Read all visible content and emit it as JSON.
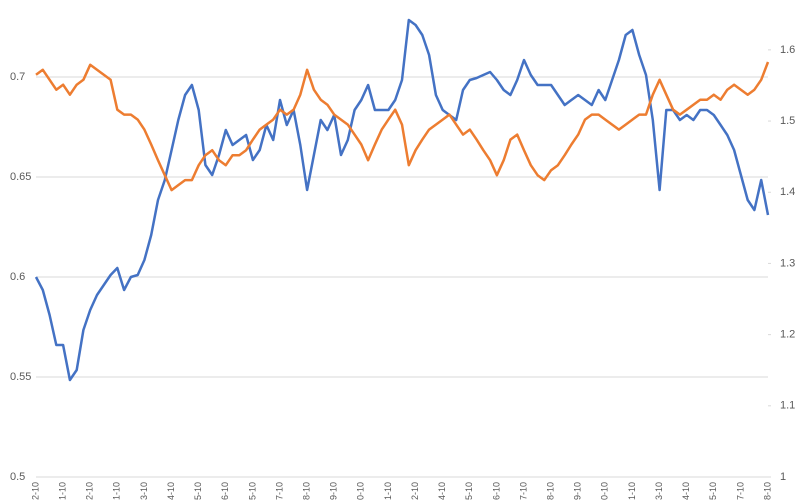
{
  "chart_data": {
    "type": "line",
    "categories": [
      "2-10",
      null,
      null,
      null,
      "1-10",
      null,
      null,
      null,
      "2-10",
      null,
      null,
      null,
      "1-10",
      null,
      null,
      null,
      "3-10",
      null,
      null,
      null,
      "4-10",
      null,
      null,
      null,
      "5-10",
      null,
      null,
      null,
      "6-10",
      null,
      null,
      null,
      "5-10",
      null,
      null,
      null,
      "7-10",
      null,
      null,
      null,
      "8-10",
      null,
      null,
      null,
      "9-10",
      null,
      null,
      null,
      "0-10",
      null,
      null,
      null,
      "1-10",
      null,
      null,
      null,
      "2-10",
      null,
      null,
      null,
      "4-10",
      null,
      null,
      null,
      "5-10",
      null,
      null,
      null,
      "6-10",
      null,
      null,
      null,
      "7-10",
      null,
      null,
      null,
      "8-10",
      null,
      null,
      null,
      "9-10",
      null,
      null,
      null,
      "0-10",
      null,
      null,
      null,
      "1-10",
      null,
      null,
      null,
      "3-10",
      null,
      null,
      null,
      "4-10",
      null,
      null,
      null,
      "5-10",
      null,
      null,
      null,
      "7-10",
      null,
      null,
      null,
      "8-10"
    ],
    "series": [
      {
        "color": "#4472c4",
        "axis": "y",
        "values": [
          0.6,
          0.5935,
          0.581,
          0.566,
          0.566,
          0.5485,
          0.5535,
          0.5735,
          0.5835,
          0.591,
          0.596,
          0.601,
          0.6045,
          0.5935,
          0.6,
          0.601,
          0.6085,
          0.621,
          0.6385,
          0.6485,
          0.6635,
          0.6785,
          0.691,
          0.696,
          0.6835,
          0.656,
          0.651,
          0.661,
          0.6735,
          0.666,
          0.6685,
          0.671,
          0.6585,
          0.6635,
          0.676,
          0.6685,
          0.6885,
          0.676,
          0.6835,
          0.666,
          0.6435,
          0.661,
          0.6785,
          0.6735,
          0.681,
          0.661,
          0.6685,
          0.6835,
          0.6885,
          0.696,
          0.6835,
          0.6835,
          0.6835,
          0.6885,
          0.6985,
          0.7285,
          0.726,
          0.721,
          0.711,
          0.691,
          0.6835,
          0.681,
          0.6785,
          0.6935,
          0.6985,
          0.6995,
          0.701,
          0.7025,
          0.6985,
          0.6935,
          0.691,
          0.6985,
          0.7085,
          0.701,
          0.696,
          0.696,
          0.696,
          0.691,
          0.686,
          0.6885,
          0.691,
          0.6885,
          0.686,
          0.6935,
          0.6885,
          0.6985,
          0.7085,
          0.721,
          0.7235,
          0.711,
          0.701,
          0.6785,
          0.6435,
          0.6835,
          0.6835,
          0.6785,
          0.681,
          0.6785,
          0.6835,
          0.6835,
          0.681,
          0.676,
          0.671,
          0.6635,
          0.651,
          0.6385,
          0.6335,
          0.6485,
          0.631
        ]
      },
      {
        "color": "#ed7d31",
        "axis": "y2",
        "values": [
          1.565,
          1.572,
          1.558,
          1.544,
          1.551,
          1.537,
          1.551,
          1.558,
          1.579,
          1.572,
          1.565,
          1.558,
          1.516,
          1.509,
          1.509,
          1.502,
          1.488,
          1.467,
          1.445,
          1.424,
          1.403,
          1.41,
          1.417,
          1.417,
          1.438,
          1.452,
          1.459,
          1.445,
          1.438,
          1.452,
          1.452,
          1.459,
          1.474,
          1.488,
          1.495,
          1.502,
          1.516,
          1.509,
          1.516,
          1.537,
          1.572,
          1.544,
          1.53,
          1.523,
          1.509,
          1.502,
          1.495,
          1.481,
          1.467,
          1.445,
          1.467,
          1.488,
          1.502,
          1.516,
          1.495,
          1.438,
          1.459,
          1.474,
          1.488,
          1.495,
          1.502,
          1.509,
          1.495,
          1.481,
          1.488,
          1.474,
          1.459,
          1.445,
          1.424,
          1.445,
          1.474,
          1.481,
          1.459,
          1.438,
          1.424,
          1.417,
          1.431,
          1.438,
          1.452,
          1.467,
          1.481,
          1.502,
          1.509,
          1.509,
          1.502,
          1.495,
          1.488,
          1.495,
          1.502,
          1.509,
          1.509,
          1.537,
          1.558,
          1.537,
          1.516,
          1.509,
          1.516,
          1.523,
          1.53,
          1.53,
          1.537,
          1.53,
          1.544,
          1.551,
          1.544,
          1.537,
          1.544,
          1.558,
          1.583
        ]
      }
    ],
    "ylim": [
      0.5,
      0.7335
    ],
    "yticks": [
      0.5,
      0.55,
      0.6,
      0.65,
      0.7
    ],
    "y2lim": [
      1,
      1.656
    ],
    "y2ticks": [
      1,
      1.1,
      1.2,
      1.3,
      1.4,
      1.5,
      1.6
    ],
    "grid": true
  }
}
